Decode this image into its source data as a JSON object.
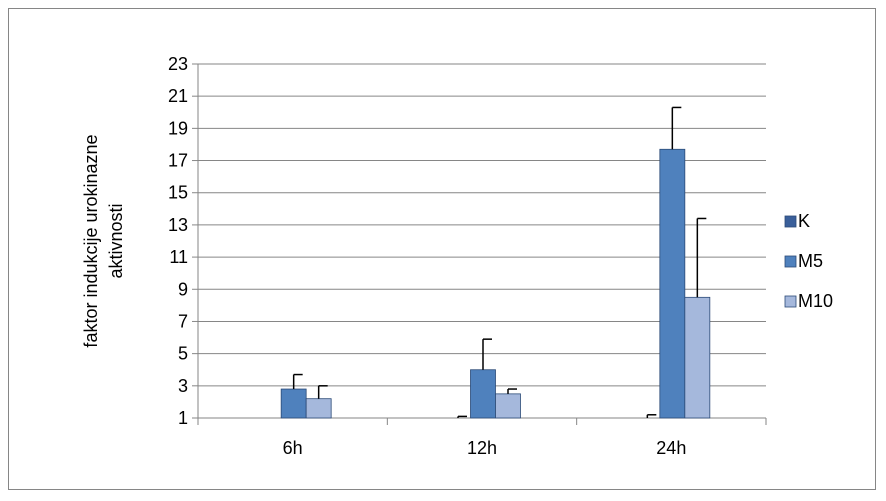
{
  "chart_data": {
    "type": "bar",
    "title": "",
    "xlabel": "",
    "ylabel_lines": [
      "faktor indukcije urokinazne",
      "aktivnosti"
    ],
    "categories": [
      "6h",
      "12h",
      "24h"
    ],
    "ylim": [
      1,
      23
    ],
    "yticks": [
      1,
      3,
      5,
      7,
      9,
      11,
      13,
      15,
      17,
      19,
      21,
      23
    ],
    "grid": true,
    "legend_position": "right",
    "series": [
      {
        "name": "K",
        "color": "#3a5f9a",
        "values": [
          1.0,
          1.0,
          1.0
        ],
        "errors": [
          0.0,
          0.1,
          0.2
        ]
      },
      {
        "name": "M5",
        "color": "#4f81bd",
        "values": [
          2.8,
          4.0,
          17.7
        ],
        "errors": [
          0.9,
          1.9,
          2.6
        ]
      },
      {
        "name": "M10",
        "color": "#a5b8dc",
        "values": [
          2.2,
          2.5,
          8.5
        ],
        "errors": [
          0.8,
          0.3,
          4.9
        ]
      }
    ]
  }
}
